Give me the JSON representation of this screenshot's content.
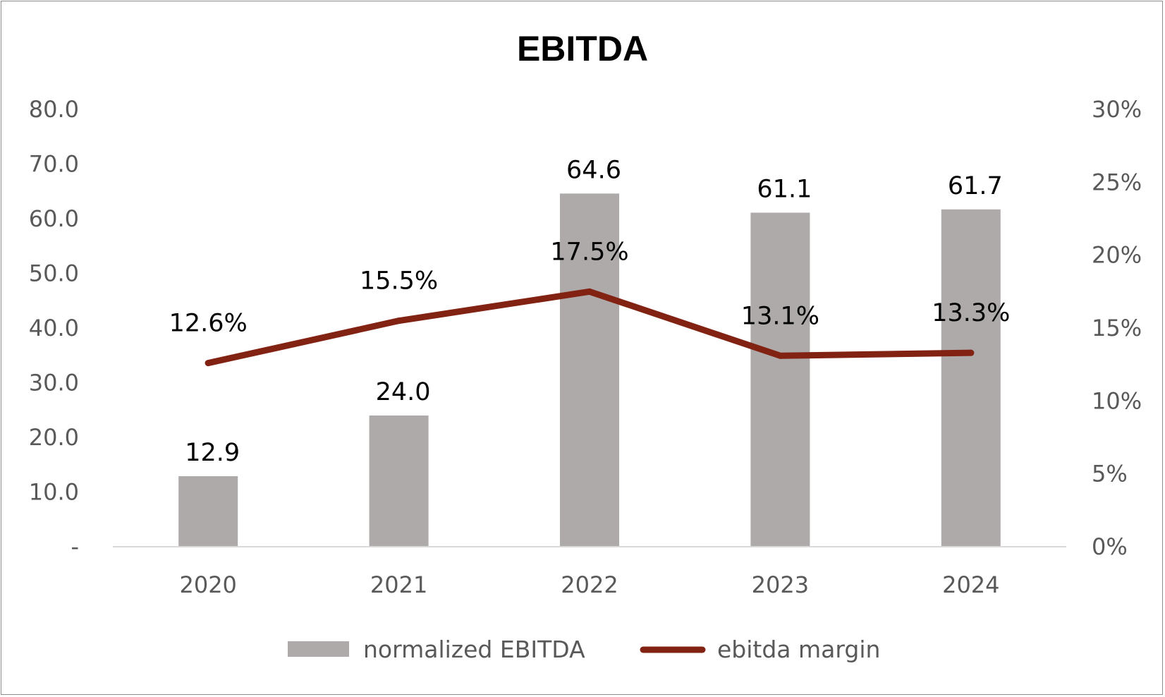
{
  "chart_data": {
    "type": "bar",
    "title": "EBITDA",
    "categories": [
      "2020",
      "2021",
      "2022",
      "2023",
      "2024"
    ],
    "series": [
      {
        "name": "normalized EBITDA",
        "type": "bar",
        "axis": "left",
        "values": [
          12.9,
          24.0,
          64.6,
          61.1,
          61.7
        ],
        "labels": [
          "12.9",
          "24.0",
          "64.6",
          "61.1",
          "61.7"
        ],
        "color": "#AEAAAA"
      },
      {
        "name": "ebitda margin",
        "type": "line",
        "axis": "right",
        "values": [
          12.6,
          15.5,
          17.5,
          13.1,
          13.3
        ],
        "labels": [
          "12.6%",
          "15.5%",
          "17.5%",
          "13.1%",
          "13.3%"
        ],
        "color": "#822213"
      }
    ],
    "y_left": {
      "min": 0,
      "max": 80,
      "ticks": [
        0,
        10,
        20,
        30,
        40,
        50,
        60,
        70,
        80
      ],
      "tick_labels": [
        "-",
        "10.0",
        "20.0",
        "30.0",
        "40.0",
        "50.0",
        "60.0",
        "70.0",
        "80.0"
      ]
    },
    "y_right": {
      "min": 0,
      "max": 30,
      "ticks": [
        0,
        5,
        10,
        15,
        20,
        25,
        30
      ],
      "tick_labels": [
        "0%",
        "5%",
        "10%",
        "15%",
        "20%",
        "25%",
        "30%"
      ]
    },
    "xlabel": "",
    "ylabel": "",
    "grid": false,
    "legend_position": "bottom",
    "axis_line_color": "#D9D9D9"
  }
}
